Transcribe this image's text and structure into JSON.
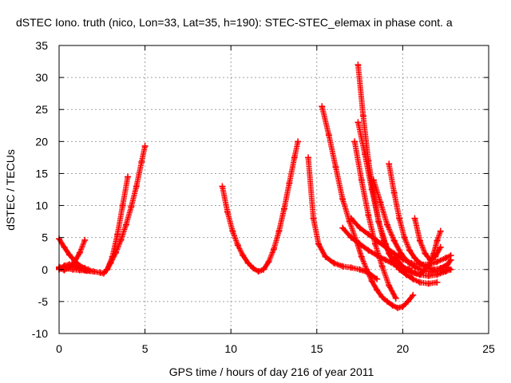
{
  "chart_data": {
    "type": "scatter",
    "title": "dSTEC Iono. truth (nico, Lon=33, Lat=35, h=190): STEC-STEC_elemax in phase cont. a",
    "xlabel": "GPS time / hours of day 216 of year 2011",
    "ylabel": "dSTEC  / TECUs",
    "xlim": [
      0,
      25
    ],
    "ylim": [
      -10,
      35
    ],
    "xticks": [
      0,
      5,
      10,
      15,
      20,
      25
    ],
    "yticks": [
      -10,
      -5,
      0,
      5,
      10,
      15,
      20,
      25,
      30,
      35
    ],
    "grid": true,
    "marker": "+",
    "color": "#ff0000",
    "series": [
      {
        "x": [
          0.0,
          0.4,
          0.8,
          1.2,
          1.6,
          2.0,
          2.4,
          2.6,
          2.8,
          3.0,
          3.3,
          3.6,
          3.9,
          4.2,
          4.5,
          4.8,
          5.0
        ],
        "y": [
          0.4,
          0.2,
          0.0,
          -0.1,
          -0.2,
          -0.3,
          -0.5,
          -0.6,
          0.0,
          1.0,
          2.6,
          4.6,
          7.0,
          9.8,
          13.0,
          16.8,
          19.3
        ]
      },
      {
        "x": [
          0.0,
          0.3,
          0.6,
          0.9,
          1.2,
          1.5,
          1.8
        ],
        "y": [
          0.0,
          0.6,
          0.8,
          0.6,
          0.2,
          -0.1,
          -0.2
        ]
      },
      {
        "x": [
          0.0,
          0.3,
          0.6,
          0.9,
          1.2,
          1.5
        ],
        "y": [
          0.2,
          -0.1,
          0.3,
          1.2,
          2.6,
          4.6
        ]
      },
      {
        "x": [
          0.0,
          0.3,
          0.6,
          0.9,
          1.2,
          1.5,
          1.7
        ],
        "y": [
          4.8,
          3.5,
          2.3,
          1.4,
          0.6,
          0.2,
          0.0
        ]
      },
      {
        "x": [
          2.8,
          3.1,
          3.4,
          3.7,
          4.0
        ],
        "y": [
          0.0,
          2.0,
          5.5,
          10.0,
          14.5
        ]
      },
      {
        "x": [
          9.5,
          9.8,
          10.1,
          10.4,
          10.7,
          11.0,
          11.3,
          11.6,
          11.9,
          12.2,
          12.5,
          12.8,
          13.1,
          13.4,
          13.7,
          13.9
        ],
        "y": [
          13.0,
          9.0,
          6.0,
          3.8,
          2.2,
          1.0,
          0.2,
          -0.3,
          0.0,
          1.2,
          3.2,
          6.0,
          9.5,
          13.5,
          17.5,
          20.0
        ]
      },
      {
        "x": [
          14.5,
          14.8,
          15.1,
          15.5,
          16.0,
          16.5,
          17.0,
          17.5,
          18.0,
          18.5
        ],
        "y": [
          17.5,
          8.0,
          4.0,
          2.0,
          1.0,
          0.5,
          0.3,
          0.0,
          -0.5,
          -1.5
        ]
      },
      {
        "x": [
          15.3,
          15.7,
          16.1,
          16.5,
          16.9,
          17.3,
          17.6,
          17.9,
          18.2,
          18.5,
          18.8,
          19.1,
          19.4,
          19.7,
          20.0,
          20.3,
          20.6
        ],
        "y": [
          25.5,
          21.0,
          16.0,
          11.0,
          7.5,
          4.5,
          2.0,
          0.0,
          -1.8,
          -3.2,
          -4.3,
          -5.0,
          -5.6,
          -6.0,
          -5.8,
          -5.0,
          -4.0
        ]
      },
      {
        "x": [
          17.4,
          17.7,
          18.0,
          18.3,
          18.6,
          18.9,
          19.2,
          19.5,
          19.8,
          20.1,
          20.4
        ],
        "y": [
          32.0,
          24.0,
          17.0,
          12.0,
          7.5,
          4.5,
          2.5,
          1.0,
          0.3,
          0.0,
          0.2
        ]
      },
      {
        "x": [
          17.4,
          17.8,
          18.2,
          18.6,
          19.0,
          19.4,
          19.8,
          20.2,
          20.6,
          21.0,
          21.5,
          22.0
        ],
        "y": [
          23.0,
          18.0,
          12.5,
          7.5,
          4.0,
          1.5,
          0.0,
          -0.8,
          -1.5,
          -2.0,
          -2.2,
          -2.0
        ]
      },
      {
        "x": [
          18.3,
          18.7,
          19.1,
          19.5,
          19.9,
          20.3,
          20.7,
          21.2,
          21.7,
          22.2,
          22.7
        ],
        "y": [
          14.0,
          10.5,
          7.0,
          4.5,
          2.5,
          1.2,
          0.4,
          -0.2,
          -0.4,
          -0.2,
          0.2
        ]
      },
      {
        "x": [
          19.2,
          19.5,
          19.8,
          20.1,
          20.4,
          20.7,
          21.0,
          21.4,
          21.8,
          22.2,
          22.6,
          22.8
        ],
        "y": [
          16.5,
          12.0,
          8.0,
          5.0,
          3.0,
          1.8,
          1.0,
          0.4,
          0.0,
          0.2,
          0.8,
          1.5
        ]
      },
      {
        "x": [
          17.0,
          17.5,
          18.0,
          18.5,
          19.0,
          19.5,
          20.0,
          20.5,
          21.0,
          21.5,
          22.0,
          22.5,
          22.8
        ],
        "y": [
          8.0,
          6.5,
          5.5,
          4.5,
          3.5,
          2.5,
          1.6,
          1.0,
          0.8,
          0.8,
          1.2,
          1.8,
          2.2
        ]
      },
      {
        "x": [
          16.5,
          17.0,
          17.5,
          18.0,
          18.5,
          19.0,
          19.5,
          20.0,
          20.5,
          21.0,
          21.5,
          22.0,
          22.5,
          22.8
        ],
        "y": [
          6.5,
          5.0,
          4.0,
          3.0,
          2.2,
          1.5,
          0.8,
          0.2,
          -0.3,
          -0.8,
          -1.0,
          -0.8,
          -0.3,
          0.0
        ]
      },
      {
        "x": [
          20.7,
          21.0,
          21.3,
          21.6,
          21.9,
          22.2
        ],
        "y": [
          8.0,
          4.5,
          2.5,
          1.5,
          2.0,
          3.5
        ]
      },
      {
        "x": [
          19.5,
          20.0,
          20.5,
          21.0,
          21.5,
          21.8,
          22.0,
          22.2
        ],
        "y": [
          2.0,
          0.5,
          -0.5,
          -0.8,
          0.5,
          2.5,
          4.5,
          6.0
        ]
      },
      {
        "x": [
          17.2,
          17.6,
          18.0,
          18.4,
          18.8,
          19.2,
          19.6
        ],
        "y": [
          20.0,
          14.0,
          8.5,
          4.0,
          0.5,
          -2.5,
          -4.5
        ]
      }
    ]
  }
}
